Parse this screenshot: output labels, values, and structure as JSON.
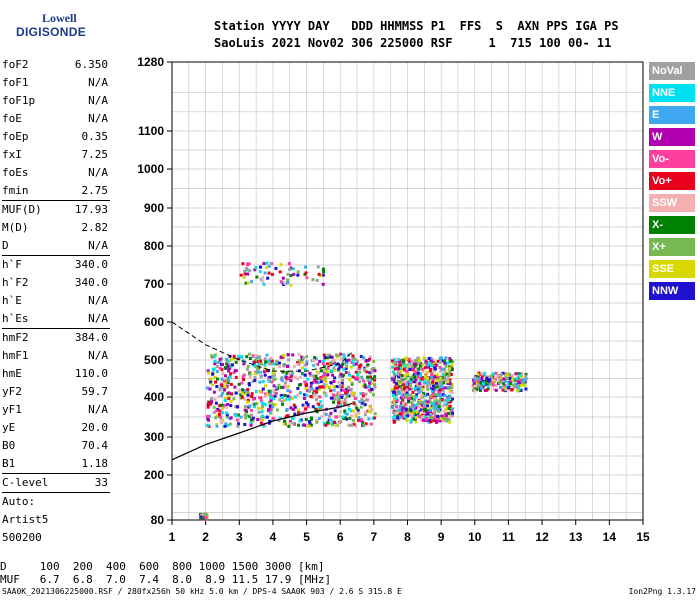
{
  "logo": {
    "line1": "Lowell",
    "line2": "DIGISONDE"
  },
  "header": {
    "labels": "Station YYYY DAY   DDD HHMMSS P1  FFS  S  AXN PPS IGA PS",
    "values": "SaoLuis 2021 Nov02 306 225000 RSF     1  715 100 00- 11"
  },
  "params": [
    {
      "name": "foF2",
      "value": "6.350"
    },
    {
      "name": "foF1",
      "value": "N/A"
    },
    {
      "name": "foF1p",
      "value": "N/A"
    },
    {
      "name": "foE",
      "value": "N/A"
    },
    {
      "name": "foEp",
      "value": "0.35"
    },
    {
      "name": "fxI",
      "value": "7.25"
    },
    {
      "name": "foEs",
      "value": "N/A"
    },
    {
      "name": "fmin",
      "value": "2.75"
    },
    {
      "sep": true
    },
    {
      "name": "MUF(D)",
      "value": "17.93"
    },
    {
      "name": "M(D)",
      "value": "2.82"
    },
    {
      "name": "D",
      "value": "N/A"
    },
    {
      "sep": true
    },
    {
      "name": "h`F",
      "value": "340.0"
    },
    {
      "name": "h`F2",
      "value": "340.0"
    },
    {
      "name": "h`E",
      "value": "N/A"
    },
    {
      "name": "h`Es",
      "value": "N/A"
    },
    {
      "sep": true
    },
    {
      "name": "hmF2",
      "value": "384.0"
    },
    {
      "name": "hmF1",
      "value": "N/A"
    },
    {
      "name": "hmE",
      "value": "110.0"
    },
    {
      "name": "yF2",
      "value": "59.7"
    },
    {
      "name": "yF1",
      "value": "N/A"
    },
    {
      "name": "yE",
      "value": "20.0"
    },
    {
      "name": "B0",
      "value": "70.4"
    },
    {
      "name": "B1",
      "value": "1.18"
    },
    {
      "sep": true
    },
    {
      "name": "C-level",
      "value": "33"
    },
    {
      "sep": true
    },
    {
      "text": "Auto:"
    },
    {
      "text": "Artist5"
    },
    {
      "text": "500200"
    }
  ],
  "legend": [
    {
      "label": "NoVal",
      "color": "#a0a0a0"
    },
    {
      "label": "NNE",
      "color": "#00e0f0"
    },
    {
      "label": "E",
      "color": "#40a8f0"
    },
    {
      "label": "W",
      "color": "#b000b0"
    },
    {
      "label": "Vo-",
      "color": "#ff3fa0"
    },
    {
      "label": "Vo+",
      "color": "#e8001c"
    },
    {
      "label": "SSW",
      "color": "#f4b0b0"
    },
    {
      "label": "X-",
      "color": "#008000"
    },
    {
      "label": "X+",
      "color": "#78b850"
    },
    {
      "label": "SSE",
      "color": "#d8d800"
    },
    {
      "label": "NNW",
      "color": "#2010d0"
    }
  ],
  "bottom": {
    "d_row": "D     100  200  400  600  800 1000 1500 3000 [km]",
    "muf_row": "MUF   6.7  6.8  7.0  7.4  8.0  8.9 11.5 17.9 [MHz]"
  },
  "footer": {
    "info": "SAA0K_2021306225000.RSF / 280fx256h 50 kHz 5.0 km / DPS-4 SAA0K 903 / 2.6 S 315.8 E",
    "version": "Ion2Png 1.3.17"
  },
  "chart_data": {
    "type": "scatter",
    "xlim": [
      1,
      15
    ],
    "ylim": [
      80,
      1280
    ],
    "y_scale": "log-like",
    "x_ticks": [
      "1",
      "2",
      "3",
      "4",
      "5",
      "6",
      "7",
      "8",
      "9",
      "10",
      "11",
      "12",
      "13",
      "14",
      "15"
    ],
    "y_ticks": [
      "80",
      "200",
      "300",
      "400",
      "500",
      "600",
      "700",
      "800",
      "900",
      "1000",
      "1100",
      "1280"
    ],
    "grid": true,
    "echo_clusters": [
      {
        "name": "F-layer main trace",
        "x": [
          2.0,
          7.0
        ],
        "y": [
          330,
          520
        ]
      },
      {
        "name": "F-layer trace 2",
        "x": [
          7.5,
          9.3
        ],
        "y": [
          340,
          510
        ]
      },
      {
        "name": "F-layer high freq",
        "x": [
          9.9,
          11.5
        ],
        "y": [
          420,
          470
        ]
      },
      {
        "name": "Low E echoes",
        "x": [
          1.8,
          2.0
        ],
        "y": [
          85,
          100
        ]
      },
      {
        "name": "Second hop",
        "x": [
          3.0,
          5.5
        ],
        "y": [
          700,
          760
        ]
      }
    ],
    "profile_curve": {
      "x": [
        1.0,
        1.5,
        2.0,
        3.0,
        4.0,
        5.0,
        6.0,
        6.35
      ],
      "y": [
        240,
        260,
        280,
        310,
        340,
        360,
        375,
        384
      ]
    },
    "o_trace_curve": {
      "x": [
        1.0,
        2.0,
        3.0,
        4.0,
        5.0,
        6.0,
        6.35
      ],
      "y": [
        600,
        540,
        500,
        470,
        470,
        490,
        520
      ]
    }
  }
}
